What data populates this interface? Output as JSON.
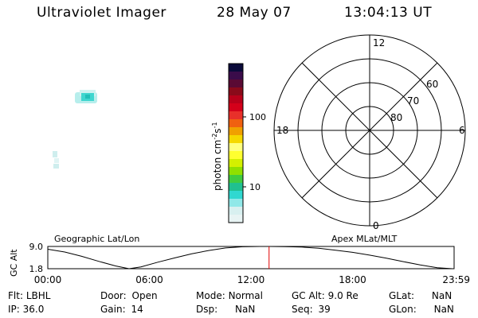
{
  "header": {
    "instrument": "Ultraviolet Imager",
    "date": "28 May 07",
    "time": "13:04:13 UT"
  },
  "image_panel": {
    "patches": [
      {
        "kind": "auroral-blob",
        "color": "#3ed6cf",
        "edge_color": "#b7eeec"
      },
      {
        "kind": "faint-patch",
        "color": "#cfeeee"
      }
    ]
  },
  "colorbar": {
    "unit": "photon cm",
    "unit_sup1": "-2",
    "unit_mid": "s",
    "unit_sup2": "-1",
    "ticks": [
      "100",
      "10"
    ],
    "colors": [
      "#0a0a3a",
      "#3a0c4a",
      "#5a0a34",
      "#8a0a1a",
      "#b8001a",
      "#d4001a",
      "#e8302a",
      "#f06010",
      "#f0a000",
      "#f5d800",
      "#ffff80",
      "#ffff30",
      "#d4f000",
      "#90e000",
      "#40cc40",
      "#20c090",
      "#30d8d0",
      "#90e8e8",
      "#d8f0f0",
      "#e8f4f4"
    ]
  },
  "polar_grid": {
    "mlt_labels": {
      "top": "12",
      "left": "18",
      "right": "6",
      "bottom": "0"
    },
    "lat_labels": [
      "60",
      "70",
      "80"
    ]
  },
  "chart_data": {
    "type": "line",
    "title": "GC Alt",
    "left_title": "Geographic Lat/Lon",
    "right_title": "Apex MLat/MLT",
    "ylabel": "GC Alt",
    "yticks": [
      "9.0",
      "1.8"
    ],
    "ylim": [
      1.8,
      9.0
    ],
    "xlim": [
      0,
      24
    ],
    "xticks": [
      "00:00",
      "06:00",
      "12:00",
      "18:00",
      "23:59"
    ],
    "series": [
      {
        "x": [
          0,
          1,
          2,
          3,
          4,
          4.8,
          5.5,
          6.5,
          7.5,
          8.5,
          9.5,
          10.5,
          11.5,
          12.5,
          13.1,
          14,
          15,
          16,
          17,
          18,
          19,
          20,
          21,
          22,
          23,
          23.9
        ],
        "values": [
          8.1,
          7.2,
          5.8,
          4.2,
          2.7,
          1.8,
          2.4,
          3.9,
          5.3,
          6.6,
          7.7,
          8.5,
          8.9,
          9.0,
          9.0,
          8.95,
          8.8,
          8.4,
          7.8,
          7.1,
          6.2,
          5.2,
          4.1,
          3.0,
          2.1,
          1.8
        ]
      }
    ],
    "marker": {
      "x": 13.07,
      "color": "#e00000"
    }
  },
  "status": {
    "flt_label": "Flt:",
    "flt_value": "LBHL",
    "ip_label": "IP:",
    "ip_value": "36.0",
    "door_label": "Door:",
    "door_value": "Open",
    "gain_label": "Gain:",
    "gain_value": "14",
    "mode_label": "Mode:",
    "mode_value": "Normal",
    "dsp_label": "Dsp:",
    "dsp_value": "NaN",
    "gcalt_label": "GC Alt:",
    "gcalt_value": "9.0 Re",
    "seq_label": "Seq:",
    "seq_value": "39",
    "glat_label": "GLat:",
    "glat_value": "NaN",
    "glon_label": "GLon:",
    "glon_value": "NaN"
  }
}
